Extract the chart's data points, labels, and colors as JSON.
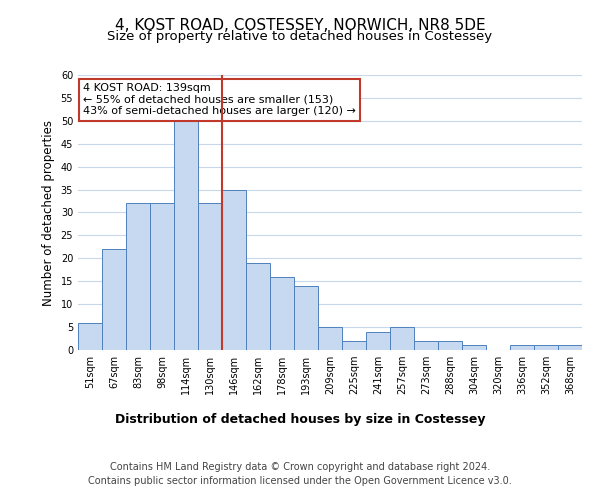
{
  "title": "4, KOST ROAD, COSTESSEY, NORWICH, NR8 5DE",
  "subtitle": "Size of property relative to detached houses in Costessey",
  "xlabel": "Distribution of detached houses by size in Costessey",
  "ylabel": "Number of detached properties",
  "bin_labels": [
    "51sqm",
    "67sqm",
    "83sqm",
    "98sqm",
    "114sqm",
    "130sqm",
    "146sqm",
    "162sqm",
    "178sqm",
    "193sqm",
    "209sqm",
    "225sqm",
    "241sqm",
    "257sqm",
    "273sqm",
    "288sqm",
    "304sqm",
    "320sqm",
    "336sqm",
    "352sqm",
    "368sqm"
  ],
  "bar_heights": [
    6,
    22,
    32,
    32,
    50,
    32,
    35,
    19,
    16,
    14,
    5,
    2,
    4,
    5,
    2,
    2,
    1,
    0,
    1,
    1,
    1
  ],
  "bar_color": "#c6d9f0",
  "bar_edge_color": "#4f81bd",
  "vline_x": 5.5,
  "vline_color": "#c0392b",
  "annotation_text": "4 KOST ROAD: 139sqm\n← 55% of detached houses are smaller (153)\n43% of semi-detached houses are larger (120) →",
  "annotation_box_color": "#ffffff",
  "annotation_box_edge": "#c0392b",
  "ylim": [
    0,
    60
  ],
  "yticks": [
    0,
    5,
    10,
    15,
    20,
    25,
    30,
    35,
    40,
    45,
    50,
    55,
    60
  ],
  "footer_line1": "Contains HM Land Registry data © Crown copyright and database right 2024.",
  "footer_line2": "Contains public sector information licensed under the Open Government Licence v3.0.",
  "background_color": "#ffffff",
  "grid_color": "#c8d8ea",
  "title_fontsize": 11,
  "subtitle_fontsize": 9.5,
  "xlabel_fontsize": 9,
  "ylabel_fontsize": 8.5,
  "tick_fontsize": 7,
  "annotation_fontsize": 8,
  "footer_fontsize": 7
}
